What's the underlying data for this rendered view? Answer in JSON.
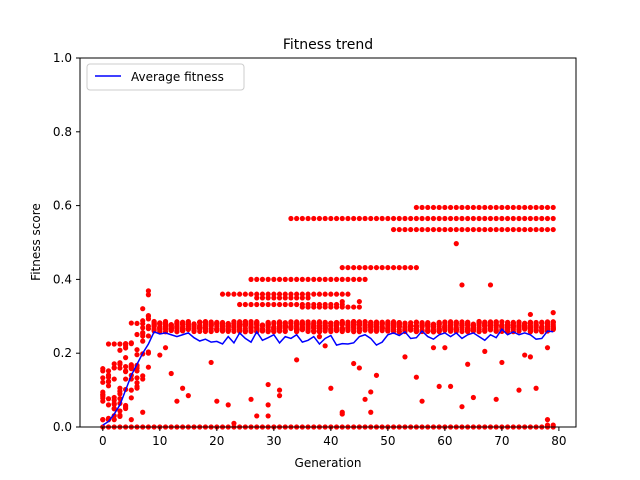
{
  "chart_data": {
    "type": "scatter",
    "title": "Fitness trend",
    "xlabel": "Generation",
    "ylabel": "Fitness score",
    "xlim": [
      -4,
      83
    ],
    "ylim": [
      0,
      1.0
    ],
    "xticks": [
      0,
      10,
      20,
      30,
      40,
      50,
      60,
      70,
      80
    ],
    "yticks": [
      0.0,
      0.2,
      0.4,
      0.6,
      0.8,
      1.0
    ],
    "grid": false,
    "legend_position": "top-left",
    "colors": {
      "line": "#0000ff",
      "points": "#ff0000"
    },
    "average_series": {
      "name": "Average fitness",
      "x": [
        0,
        1,
        2,
        3,
        4,
        5,
        6,
        7,
        8,
        9,
        10,
        11,
        12,
        13,
        14,
        15,
        16,
        17,
        18,
        19,
        20,
        21,
        22,
        23,
        24,
        25,
        26,
        27,
        28,
        29,
        30,
        31,
        32,
        33,
        34,
        35,
        36,
        37,
        38,
        39,
        40,
        41,
        42,
        43,
        44,
        45,
        46,
        47,
        48,
        49,
        50,
        51,
        52,
        53,
        54,
        55,
        56,
        57,
        58,
        59,
        60,
        61,
        62,
        63,
        64,
        65,
        66,
        67,
        68,
        69,
        70,
        71,
        72,
        73,
        74,
        75,
        76,
        77,
        78,
        79
      ],
      "y": [
        0.005,
        0.015,
        0.035,
        0.06,
        0.1,
        0.14,
        0.17,
        0.2,
        0.225,
        0.258,
        0.252,
        0.255,
        0.25,
        0.245,
        0.25,
        0.255,
        0.242,
        0.233,
        0.238,
        0.23,
        0.232,
        0.225,
        0.245,
        0.228,
        0.255,
        0.24,
        0.23,
        0.258,
        0.235,
        0.242,
        0.25,
        0.228,
        0.245,
        0.24,
        0.25,
        0.23,
        0.235,
        0.245,
        0.225,
        0.24,
        0.248,
        0.222,
        0.226,
        0.225,
        0.228,
        0.245,
        0.25,
        0.24,
        0.222,
        0.23,
        0.25,
        0.255,
        0.248,
        0.258,
        0.24,
        0.242,
        0.26,
        0.245,
        0.238,
        0.25,
        0.255,
        0.245,
        0.255,
        0.24,
        0.25,
        0.255,
        0.245,
        0.235,
        0.25,
        0.242,
        0.265,
        0.25,
        0.258,
        0.25,
        0.255,
        0.25,
        0.238,
        0.24,
        0.26,
        0.258
      ]
    },
    "top_individuals": [
      {
        "y": 0.565,
        "from": 33,
        "to": 79
      },
      {
        "y": 0.595,
        "from": 55,
        "to": 79
      },
      {
        "y": 0.535,
        "from": 51,
        "to": 79
      },
      {
        "y": 0.432,
        "from": 42,
        "to": 55
      },
      {
        "y": 0.4,
        "from": 26,
        "to": 46
      },
      {
        "y": 0.36,
        "from": 21,
        "to": 43
      },
      {
        "y": 0.35,
        "from": 27,
        "to": 36
      },
      {
        "y": 0.332,
        "from": 24,
        "to": 42
      },
      {
        "y": 0.325,
        "from": 35,
        "to": 45
      }
    ],
    "outliers": [
      [
        62,
        0.497
      ],
      [
        63,
        0.385
      ],
      [
        68,
        0.385
      ],
      [
        42,
        0.34
      ],
      [
        45,
        0.34
      ],
      [
        75,
        0.305
      ],
      [
        79,
        0.31
      ],
      [
        1,
        0.225
      ],
      [
        2,
        0.225
      ],
      [
        3,
        0.225
      ],
      [
        4,
        0.225
      ],
      [
        0,
        0.152
      ],
      [
        1,
        0.152
      ],
      [
        2,
        0.16
      ],
      [
        3,
        0.17
      ],
      [
        4,
        0.15
      ],
      [
        5,
        0.14
      ],
      [
        6,
        0.12
      ],
      [
        7,
        0.13
      ],
      [
        8,
        0.2
      ],
      [
        0,
        0.07
      ],
      [
        1,
        0.06
      ],
      [
        2,
        0.08
      ],
      [
        3,
        0.09
      ],
      [
        4,
        0.05
      ],
      [
        5,
        0.1
      ],
      [
        6,
        0.11
      ],
      [
        7,
        0.04
      ],
      [
        3,
        0.03
      ],
      [
        5,
        0.02
      ],
      [
        11,
        0.215
      ],
      [
        12,
        0.145
      ],
      [
        13,
        0.07
      ],
      [
        14,
        0.105
      ],
      [
        15,
        0.085
      ],
      [
        10,
        0.195
      ],
      [
        19,
        0.175
      ],
      [
        20,
        0.07
      ],
      [
        22,
        0.06
      ],
      [
        23,
        0.01
      ],
      [
        26,
        0.075
      ],
      [
        27,
        0.03
      ],
      [
        29,
        0.03
      ],
      [
        29,
        0.06
      ],
      [
        29,
        0.115
      ],
      [
        31,
        0.1
      ],
      [
        31,
        0.085
      ],
      [
        34,
        0.182
      ],
      [
        38,
        0.245
      ],
      [
        39,
        0.22
      ],
      [
        40,
        0.105
      ],
      [
        42,
        0.04
      ],
      [
        42,
        0.035
      ],
      [
        44,
        0.172
      ],
      [
        45,
        0.16
      ],
      [
        46,
        0.075
      ],
      [
        47,
        0.095
      ],
      [
        47,
        0.04
      ],
      [
        48,
        0.14
      ],
      [
        53,
        0.19
      ],
      [
        55,
        0.135
      ],
      [
        56,
        0.07
      ],
      [
        58,
        0.215
      ],
      [
        59,
        0.11
      ],
      [
        60,
        0.215
      ],
      [
        61,
        0.11
      ],
      [
        63,
        0.055
      ],
      [
        64,
        0.17
      ],
      [
        65,
        0.08
      ],
      [
        67,
        0.205
      ],
      [
        69,
        0.075
      ],
      [
        70,
        0.175
      ],
      [
        73,
        0.1
      ],
      [
        74,
        0.195
      ],
      [
        75,
        0.19
      ],
      [
        76,
        0.105
      ],
      [
        78,
        0.215
      ],
      [
        78,
        0.02
      ],
      [
        78,
        0.005
      ],
      [
        79,
        0.005
      ]
    ]
  }
}
